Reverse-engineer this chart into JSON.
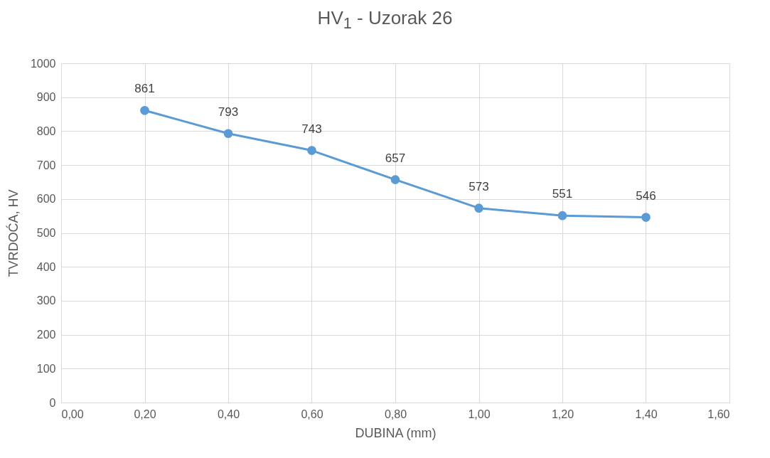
{
  "chart_data": {
    "type": "line",
    "title": "HV$_{1}$ - Uzorak 26",
    "xlabel": "DUBINA (mm)",
    "ylabel": "TVRDOĆA, HV",
    "x": [
      0.2,
      0.4,
      0.6,
      0.8,
      1.0,
      1.2,
      1.4
    ],
    "series": [
      {
        "color": "#5b9bd5",
        "values": [
          861,
          793,
          743,
          657,
          573,
          551,
          546
        ]
      }
    ],
    "xlim": [
      0,
      1.6
    ],
    "xticks": [
      {
        "value": 0,
        "label": "0,00"
      },
      {
        "value": 0.2,
        "label": "0,20"
      },
      {
        "value": 0.4,
        "label": "0,40"
      },
      {
        "value": 0.6,
        "label": "0,60"
      },
      {
        "value": 0.8,
        "label": "0,80"
      },
      {
        "value": 1.0,
        "label": "1,00"
      },
      {
        "value": 1.2,
        "label": "1,20"
      },
      {
        "value": 1.4,
        "label": "1,40"
      },
      {
        "value": 1.6,
        "label": "1,60"
      }
    ],
    "ylim": [
      0,
      1000
    ],
    "yticks": [
      0,
      100,
      200,
      300,
      400,
      500,
      600,
      700,
      800,
      900,
      1000
    ],
    "grid": true,
    "marker": "circle",
    "line_style": "solid",
    "data_labels": true
  }
}
